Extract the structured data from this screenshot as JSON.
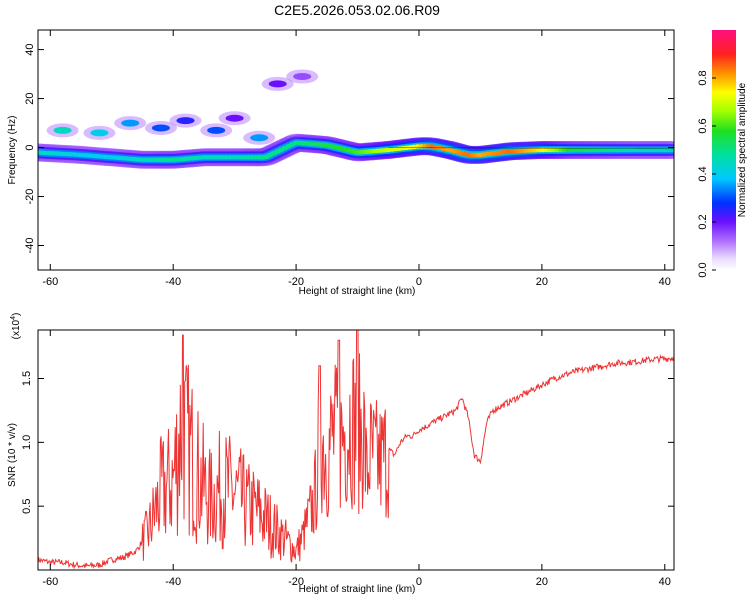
{
  "title": "C2E5.2026.053.02.06.R09",
  "chart_data": [
    {
      "type": "heatmap",
      "xlabel": "Height of straight line (km)",
      "ylabel": "Frequency (Hz)",
      "xlim": [
        -62,
        41.5
      ],
      "ylim": [
        -50,
        48
      ],
      "xticks": [
        -60,
        -40,
        -20,
        0,
        20,
        40
      ],
      "yticks": [
        -40,
        -20,
        0,
        20,
        40
      ],
      "colorbar": {
        "label": "Normalized spectral amplitude",
        "range": [
          0,
          1
        ],
        "ticks": [
          "0.0",
          "0.2",
          "0.4",
          "0.6",
          "0.8"
        ]
      },
      "dominant_ridge": {
        "x": [
          -62,
          -55,
          -50,
          -45,
          -40,
          -35,
          -30,
          -25,
          -20,
          -15,
          -10,
          -5,
          0,
          2,
          5,
          8,
          10,
          15,
          20,
          25,
          30,
          35,
          41.5
        ],
        "freq": [
          -2,
          -3,
          -4,
          -5,
          -5,
          -4,
          -4,
          -4,
          2,
          1,
          -2,
          -1,
          0.5,
          0.5,
          -1,
          -3,
          -3,
          -1.5,
          -1,
          -1,
          -1,
          -1,
          -1
        ],
        "amplitude": [
          0.45,
          0.4,
          0.4,
          0.45,
          0.5,
          0.45,
          0.45,
          0.5,
          0.5,
          0.55,
          0.6,
          0.7,
          0.75,
          0.85,
          0.8,
          0.85,
          0.8,
          0.85,
          0.75,
          0.55,
          0.5,
          0.45,
          0.45
        ]
      },
      "secondary_blobs": [
        {
          "x": -58,
          "freq": 7,
          "amplitude": 0.45
        },
        {
          "x": -52,
          "freq": 6,
          "amplitude": 0.4
        },
        {
          "x": -47,
          "freq": 10,
          "amplitude": 0.35
        },
        {
          "x": -42,
          "freq": 8,
          "amplitude": 0.3
        },
        {
          "x": -38,
          "freq": 11,
          "amplitude": 0.25
        },
        {
          "x": -33,
          "freq": 7,
          "amplitude": 0.3
        },
        {
          "x": -30,
          "freq": 12,
          "amplitude": 0.2
        },
        {
          "x": -26,
          "freq": 4,
          "amplitude": 0.35
        },
        {
          "x": -23,
          "freq": 26,
          "amplitude": 0.2
        },
        {
          "x": -19,
          "freq": 29,
          "amplitude": 0.15
        }
      ]
    },
    {
      "type": "line",
      "xlabel": "Height of straight line (km)",
      "ylabel": "SNR (10 * v/v)",
      "yscale_label": "(x10",
      "yscale_exp": "4",
      "yscale_close": ")",
      "xlim": [
        -62,
        41.5
      ],
      "ylim": [
        0,
        1.88
      ],
      "xticks": [
        -60,
        -40,
        -20,
        0,
        20,
        40
      ],
      "yticks": [
        0.5,
        1.0,
        1.5
      ],
      "ytick_labels": [
        "0.5",
        "1.0",
        "1.5"
      ],
      "line_color": "#ee3333",
      "series": [
        {
          "x": [
            -62,
            -60,
            -58,
            -56,
            -54,
            -52,
            -50,
            -48,
            -46,
            -44,
            -42,
            -40,
            -38.5,
            -38,
            -37,
            -36,
            -34,
            -32,
            -30,
            -28,
            -26,
            -24,
            -22,
            -20,
            -19,
            -17,
            -16,
            -15,
            -14,
            -13,
            -12,
            -11,
            -10,
            -9,
            -8.5,
            -8,
            -7,
            -6,
            -5,
            -4,
            -3,
            -2,
            -1,
            0,
            1,
            2,
            4,
            6,
            7,
            8,
            9,
            10,
            11,
            12,
            14,
            16,
            18,
            20,
            22,
            25,
            28,
            30,
            32,
            35,
            38,
            41.5
          ],
          "y": [
            0.08,
            0.06,
            0.06,
            0.04,
            0.03,
            0.04,
            0.08,
            0.1,
            0.15,
            0.3,
            0.6,
            0.7,
            1.2,
            1.0,
            0.9,
            0.75,
            0.55,
            0.65,
            0.6,
            0.5,
            0.45,
            0.35,
            0.25,
            0.15,
            0.25,
            0.55,
            1.05,
            0.9,
            1.05,
            1.0,
            1.1,
            1.2,
            1.05,
            1.1,
            0.7,
            0.9,
            0.85,
            0.85,
            0.95,
            0.9,
            1.0,
            1.05,
            1.05,
            1.1,
            1.12,
            1.15,
            1.2,
            1.25,
            1.35,
            1.2,
            0.9,
            0.85,
            1.15,
            1.25,
            1.3,
            1.35,
            1.4,
            1.45,
            1.5,
            1.55,
            1.58,
            1.6,
            1.62,
            1.63,
            1.65,
            1.66
          ]
        }
      ]
    }
  ]
}
